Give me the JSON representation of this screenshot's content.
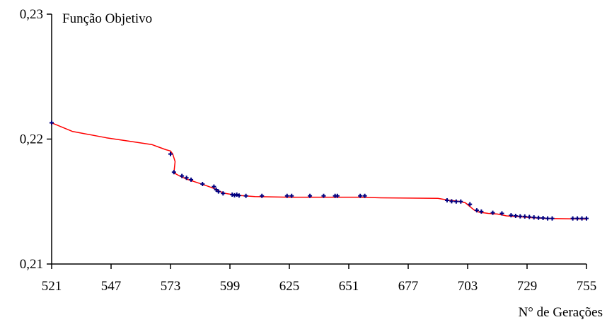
{
  "chart_data": {
    "type": "line",
    "title": "Função Objetivo",
    "xlabel": "N° de Gerações",
    "ylabel": "",
    "xlim": [
      521,
      755
    ],
    "ylim": [
      0.21,
      0.23
    ],
    "x_ticks": [
      521,
      547,
      573,
      599,
      625,
      651,
      677,
      703,
      729,
      755
    ],
    "x_tick_labels": [
      "521",
      "547",
      "573",
      "599",
      "625",
      "651",
      "677",
      "703",
      "729",
      "755"
    ],
    "y_ticks": [
      0.21,
      0.22,
      0.23
    ],
    "y_tick_labels": [
      "0,21",
      "0,22",
      "0,23"
    ],
    "grid": false,
    "line_color": "#ff0000",
    "marker_color": "#000080",
    "series": [
      {
        "line": [
          [
            521,
            0.2213
          ],
          [
            530,
            0.22062
          ],
          [
            545,
            0.2201
          ],
          [
            555,
            0.21983
          ],
          [
            565,
            0.21955
          ],
          [
            568,
            0.21935
          ],
          [
            571,
            0.21915
          ],
          [
            573,
            0.21905
          ],
          [
            574,
            0.2188
          ],
          [
            575,
            0.2182
          ],
          [
            574.5,
            0.2173
          ],
          [
            577,
            0.21705
          ],
          [
            580,
            0.2168
          ],
          [
            585,
            0.2165
          ],
          [
            589,
            0.21625
          ],
          [
            592,
            0.21605
          ],
          [
            594,
            0.21585
          ],
          [
            597,
            0.21565
          ],
          [
            602,
            0.2155
          ],
          [
            610,
            0.2154
          ],
          [
            625,
            0.21535
          ],
          [
            641,
            0.21535
          ],
          [
            656,
            0.21535
          ],
          [
            665,
            0.2153
          ],
          [
            690,
            0.21525
          ],
          [
            695,
            0.2151
          ],
          [
            699,
            0.21502
          ],
          [
            702,
            0.2149
          ],
          [
            704,
            0.2146
          ],
          [
            706,
            0.2143
          ],
          [
            708,
            0.21415
          ],
          [
            712,
            0.21405
          ],
          [
            716,
            0.214
          ],
          [
            720,
            0.21385
          ],
          [
            726,
            0.21378
          ],
          [
            732,
            0.2137
          ],
          [
            737,
            0.21365
          ],
          [
            748,
            0.21362
          ],
          [
            755,
            0.2136
          ]
        ],
        "markers": [
          [
            521,
            0.2213
          ],
          [
            573,
            0.2188
          ],
          [
            574.5,
            0.21735
          ],
          [
            578,
            0.21705
          ],
          [
            580,
            0.2169
          ],
          [
            582,
            0.21675
          ],
          [
            587,
            0.2164
          ],
          [
            592,
            0.2162
          ],
          [
            593,
            0.21595
          ],
          [
            594,
            0.2158
          ],
          [
            596,
            0.21565
          ],
          [
            600,
            0.21555
          ],
          [
            601,
            0.2155
          ],
          [
            602,
            0.21555
          ],
          [
            603,
            0.21548
          ],
          [
            606,
            0.21545
          ],
          [
            613,
            0.21545
          ],
          [
            624,
            0.21545
          ],
          [
            626,
            0.21545
          ],
          [
            634,
            0.21545
          ],
          [
            640,
            0.21545
          ],
          [
            645,
            0.21545
          ],
          [
            646,
            0.21545
          ],
          [
            656,
            0.21545
          ],
          [
            658,
            0.21545
          ],
          [
            694,
            0.2151
          ],
          [
            696,
            0.21502
          ],
          [
            698,
            0.215
          ],
          [
            700,
            0.215
          ],
          [
            704,
            0.21478
          ],
          [
            707,
            0.2143
          ],
          [
            709,
            0.2142
          ],
          [
            714,
            0.2141
          ],
          [
            718,
            0.21405
          ],
          [
            722,
            0.2139
          ],
          [
            724,
            0.21385
          ],
          [
            726,
            0.21382
          ],
          [
            728,
            0.2138
          ],
          [
            730,
            0.21377
          ],
          [
            732,
            0.21373
          ],
          [
            734,
            0.2137
          ],
          [
            736,
            0.21368
          ],
          [
            738,
            0.21365
          ],
          [
            740,
            0.21365
          ],
          [
            749,
            0.21365
          ],
          [
            751,
            0.21365
          ],
          [
            753,
            0.21365
          ],
          [
            755,
            0.21365
          ]
        ]
      }
    ]
  }
}
